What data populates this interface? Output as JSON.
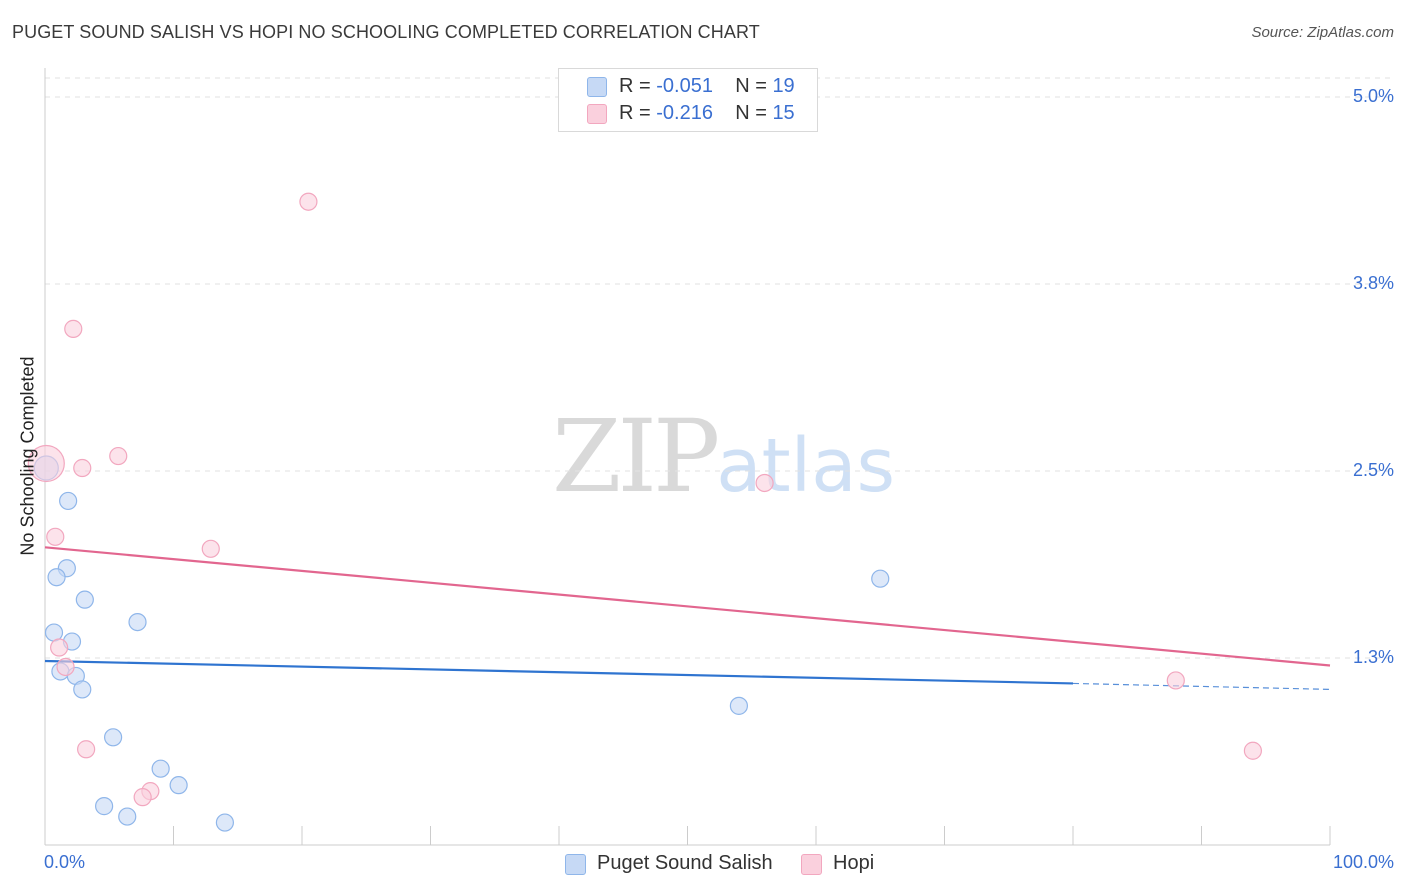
{
  "title": "PUGET SOUND SALISH VS HOPI NO SCHOOLING COMPLETED CORRELATION CHART",
  "source": "Source: ZipAtlas.com",
  "chart_data": {
    "type": "scatter",
    "xlabel": "",
    "ylabel": "No Schooling Completed",
    "xlim": [
      0,
      100
    ],
    "ylim": [
      0.0,
      5.0
    ],
    "x_tick_labels": [
      "0.0%",
      "100.0%"
    ],
    "y_ticks": [
      {
        "value": 1.25,
        "label": "1.3%"
      },
      {
        "value": 2.5,
        "label": "2.5%"
      },
      {
        "value": 3.75,
        "label": "3.8%"
      },
      {
        "value": 5.0,
        "label": "5.0%"
      }
    ],
    "series": [
      {
        "name": "Puget Sound Salish",
        "color": "#8fb6ea",
        "fill": "#c6d9f5",
        "line_color": "#2f74d0",
        "R": "-0.051",
        "N": "19",
        "trend": {
          "x0": 0,
          "y0": 1.23,
          "x1": 80,
          "y1": 1.08,
          "dash_to_x": 100,
          "dash_to_y": 1.04
        },
        "points": [
          {
            "x": 0.1,
            "y": 2.52,
            "size": 12
          },
          {
            "x": 1.8,
            "y": 2.3
          },
          {
            "x": 1.7,
            "y": 1.85
          },
          {
            "x": 0.9,
            "y": 1.79
          },
          {
            "x": 3.1,
            "y": 1.64
          },
          {
            "x": 7.2,
            "y": 1.49
          },
          {
            "x": 0.7,
            "y": 1.42
          },
          {
            "x": 2.1,
            "y": 1.36
          },
          {
            "x": 1.2,
            "y": 1.16
          },
          {
            "x": 2.4,
            "y": 1.13
          },
          {
            "x": 2.9,
            "y": 1.04
          },
          {
            "x": 54.0,
            "y": 0.93
          },
          {
            "x": 5.3,
            "y": 0.72
          },
          {
            "x": 9.0,
            "y": 0.51
          },
          {
            "x": 10.4,
            "y": 0.4
          },
          {
            "x": 4.6,
            "y": 0.26
          },
          {
            "x": 6.4,
            "y": 0.19
          },
          {
            "x": 14.0,
            "y": 0.15
          },
          {
            "x": 65.0,
            "y": 1.78
          }
        ]
      },
      {
        "name": "Hopi",
        "color": "#f2a7bf",
        "fill": "#fad0dd",
        "line_color": "#e2668f",
        "R": "-0.216",
        "N": "15",
        "trend": {
          "x0": 0,
          "y0": 1.99,
          "x1": 100,
          "y1": 1.2
        },
        "points": [
          {
            "x": 20.5,
            "y": 4.3
          },
          {
            "x": 2.2,
            "y": 3.45
          },
          {
            "x": 0.1,
            "y": 2.55,
            "size": 18
          },
          {
            "x": 5.7,
            "y": 2.6
          },
          {
            "x": 2.9,
            "y": 2.52
          },
          {
            "x": 56.0,
            "y": 2.42
          },
          {
            "x": 0.8,
            "y": 2.06
          },
          {
            "x": 12.9,
            "y": 1.98
          },
          {
            "x": 1.1,
            "y": 1.32
          },
          {
            "x": 1.6,
            "y": 1.19
          },
          {
            "x": 88.0,
            "y": 1.1
          },
          {
            "x": 3.2,
            "y": 0.64
          },
          {
            "x": 8.2,
            "y": 0.36
          },
          {
            "x": 7.6,
            "y": 0.32
          },
          {
            "x": 94.0,
            "y": 0.63
          }
        ]
      }
    ]
  }
}
